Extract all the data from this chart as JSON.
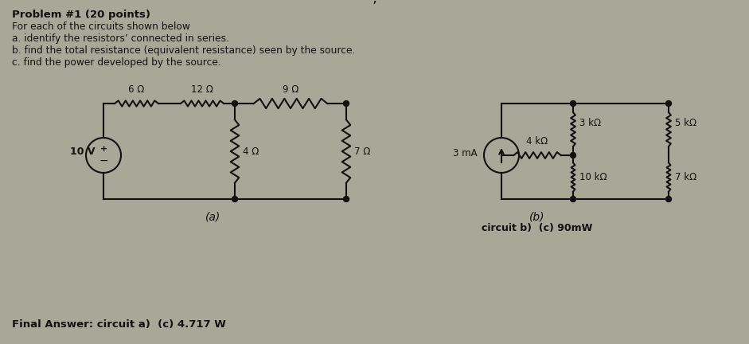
{
  "bg_color": "#a8a898",
  "line_color": "#111111",
  "text_color": "#111111",
  "title_text": "Problem #1 (20 points)",
  "lines": [
    "For each of the circuits shown below",
    "a. identify the resistors’ connected in series.",
    "b. find the total resistance (equivalent resistance) seen by the source.",
    "c. find the power developed by the source."
  ],
  "ca_source": "10 V",
  "ca_r1": "6 Ω",
  "ca_r2": "12 Ω",
  "ca_r3": "9 Ω",
  "ca_r4": "4 Ω",
  "ca_r5": "7 Ω",
  "ca_label": "(a)",
  "footer_a": "Final Answer: circuit a)  (c) 4.717 W",
  "cb_source": "3 mA",
  "cb_r1": "4 kΩ",
  "cb_r2": "3 kΩ",
  "cb_r3": "10 kΩ",
  "cb_r4": "5 kΩ",
  "cb_r5": "7 kΩ",
  "cb_label": "(b)",
  "footer_b": "circuit b)  (c) 90mW"
}
